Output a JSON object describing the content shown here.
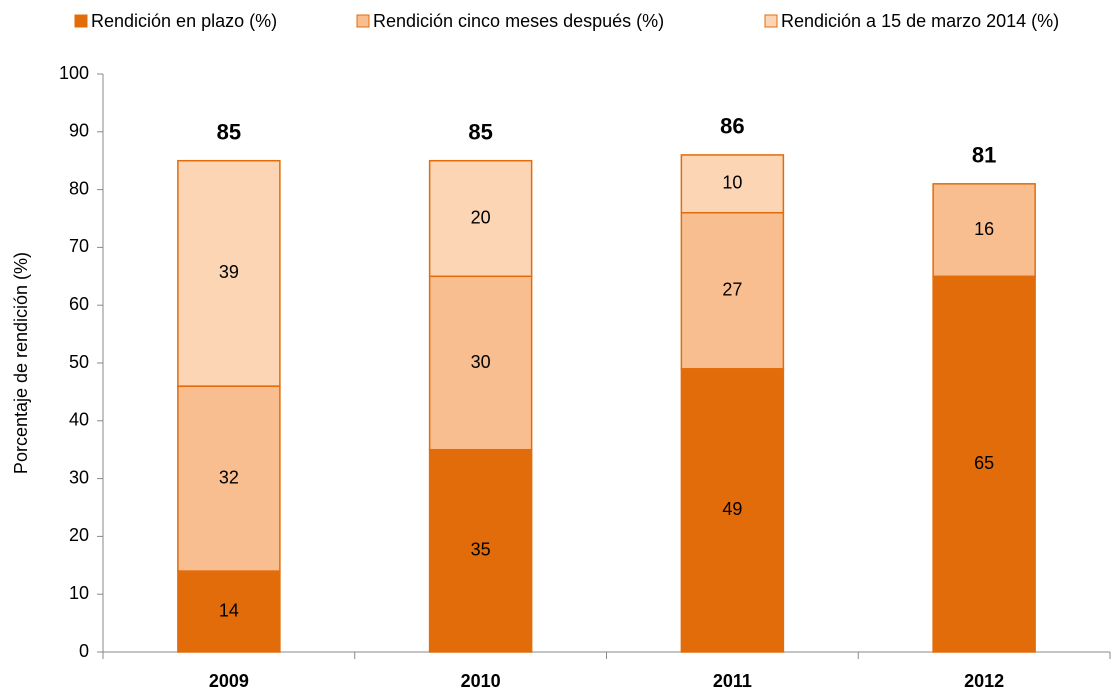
{
  "chart_data": {
    "type": "stacked_bar",
    "y_label": "Porcentaje de rendición (%)",
    "categories": [
      "2009",
      "2010",
      "2011",
      "2012"
    ],
    "series": [
      {
        "name": "Rendición en plazo (%)",
        "color": "#e36c0a",
        "values": [
          14,
          35,
          49,
          65
        ]
      },
      {
        "name": "Rendición cinco meses después (%)",
        "color": "#f9be8f",
        "values": [
          32,
          30,
          27,
          16
        ]
      },
      {
        "name": "Rendición a 15 de marzo 2014 (%)",
        "color": "#fcd5b5",
        "values": [
          39,
          20,
          10,
          null
        ]
      }
    ],
    "totals": [
      85,
      85,
      86,
      81
    ],
    "ylim": [
      0,
      100
    ],
    "yticks": [
      0,
      10,
      20,
      30,
      40,
      50,
      60,
      70,
      80,
      90,
      100
    ],
    "grid": false,
    "legend": "top",
    "edge_color": "#e36c0a"
  }
}
